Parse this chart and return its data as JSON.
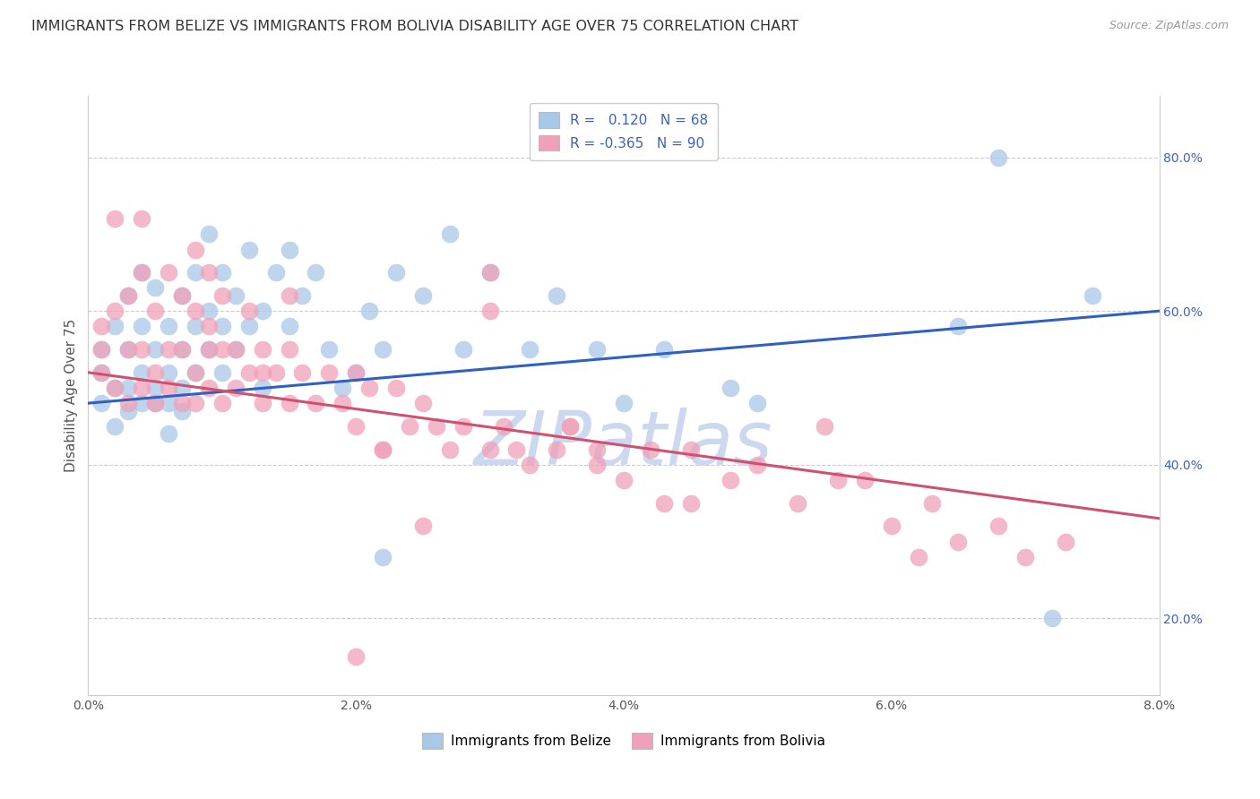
{
  "title": "IMMIGRANTS FROM BELIZE VS IMMIGRANTS FROM BOLIVIA DISABILITY AGE OVER 75 CORRELATION CHART",
  "source": "Source: ZipAtlas.com",
  "ylabel": "Disability Age Over 75",
  "xlim": [
    0.0,
    0.08
  ],
  "ylim": [
    0.1,
    0.88
  ],
  "xticks": [
    0.0,
    0.02,
    0.04,
    0.06,
    0.08
  ],
  "yticks": [
    0.2,
    0.4,
    0.6,
    0.8
  ],
  "belize_R": 0.12,
  "belize_N": 68,
  "bolivia_R": -0.365,
  "bolivia_N": 90,
  "belize_color": "#a8c8e8",
  "bolivia_color": "#f0a0b8",
  "belize_line_color": "#3060c0",
  "bolivia_line_color": "#d05070",
  "accent_color": "#4060c0",
  "watermark": "ZIPatlas",
  "watermark_color": "#ccd8f0",
  "title_fontsize": 11.5,
  "tick_fontsize": 10,
  "label_fontsize": 11,
  "belize_x": [
    0.001,
    0.001,
    0.001,
    0.002,
    0.002,
    0.002,
    0.003,
    0.003,
    0.003,
    0.003,
    0.004,
    0.004,
    0.004,
    0.004,
    0.005,
    0.005,
    0.005,
    0.005,
    0.006,
    0.006,
    0.006,
    0.006,
    0.007,
    0.007,
    0.007,
    0.007,
    0.008,
    0.008,
    0.008,
    0.009,
    0.009,
    0.009,
    0.01,
    0.01,
    0.01,
    0.011,
    0.011,
    0.012,
    0.012,
    0.013,
    0.013,
    0.014,
    0.015,
    0.015,
    0.016,
    0.017,
    0.018,
    0.019,
    0.02,
    0.021,
    0.022,
    0.023,
    0.025,
    0.027,
    0.028,
    0.03,
    0.033,
    0.035,
    0.038,
    0.04,
    0.043,
    0.048,
    0.05,
    0.022,
    0.065,
    0.068,
    0.072,
    0.075
  ],
  "belize_y": [
    0.52,
    0.48,
    0.55,
    0.5,
    0.58,
    0.45,
    0.62,
    0.55,
    0.5,
    0.47,
    0.65,
    0.58,
    0.52,
    0.48,
    0.63,
    0.55,
    0.5,
    0.48,
    0.58,
    0.52,
    0.48,
    0.44,
    0.62,
    0.55,
    0.5,
    0.47,
    0.65,
    0.58,
    0.52,
    0.7,
    0.6,
    0.55,
    0.65,
    0.58,
    0.52,
    0.62,
    0.55,
    0.68,
    0.58,
    0.6,
    0.5,
    0.65,
    0.68,
    0.58,
    0.62,
    0.65,
    0.55,
    0.5,
    0.52,
    0.6,
    0.55,
    0.65,
    0.62,
    0.7,
    0.55,
    0.65,
    0.55,
    0.62,
    0.55,
    0.48,
    0.55,
    0.5,
    0.48,
    0.28,
    0.58,
    0.8,
    0.2,
    0.62
  ],
  "bolivia_x": [
    0.001,
    0.001,
    0.001,
    0.002,
    0.002,
    0.003,
    0.003,
    0.003,
    0.004,
    0.004,
    0.004,
    0.005,
    0.005,
    0.005,
    0.006,
    0.006,
    0.006,
    0.007,
    0.007,
    0.007,
    0.008,
    0.008,
    0.008,
    0.009,
    0.009,
    0.009,
    0.01,
    0.01,
    0.01,
    0.011,
    0.011,
    0.012,
    0.012,
    0.013,
    0.013,
    0.014,
    0.015,
    0.015,
    0.016,
    0.017,
    0.018,
    0.019,
    0.02,
    0.02,
    0.021,
    0.022,
    0.023,
    0.024,
    0.025,
    0.026,
    0.027,
    0.028,
    0.03,
    0.031,
    0.032,
    0.033,
    0.035,
    0.036,
    0.038,
    0.04,
    0.042,
    0.045,
    0.048,
    0.05,
    0.053,
    0.056,
    0.06,
    0.063,
    0.065,
    0.068,
    0.07,
    0.073,
    0.002,
    0.004,
    0.008,
    0.015,
    0.02,
    0.025,
    0.03,
    0.038,
    0.045,
    0.055,
    0.062,
    0.058,
    0.043,
    0.036,
    0.03,
    0.022,
    0.013,
    0.009
  ],
  "bolivia_y": [
    0.58,
    0.52,
    0.55,
    0.6,
    0.5,
    0.62,
    0.55,
    0.48,
    0.65,
    0.55,
    0.5,
    0.6,
    0.52,
    0.48,
    0.65,
    0.55,
    0.5,
    0.62,
    0.55,
    0.48,
    0.6,
    0.52,
    0.48,
    0.65,
    0.58,
    0.5,
    0.62,
    0.55,
    0.48,
    0.55,
    0.5,
    0.6,
    0.52,
    0.55,
    0.48,
    0.52,
    0.55,
    0.48,
    0.52,
    0.48,
    0.52,
    0.48,
    0.52,
    0.45,
    0.5,
    0.42,
    0.5,
    0.45,
    0.48,
    0.45,
    0.42,
    0.45,
    0.42,
    0.45,
    0.42,
    0.4,
    0.42,
    0.45,
    0.4,
    0.38,
    0.42,
    0.42,
    0.38,
    0.4,
    0.35,
    0.38,
    0.32,
    0.35,
    0.3,
    0.32,
    0.28,
    0.3,
    0.72,
    0.72,
    0.68,
    0.62,
    0.15,
    0.32,
    0.6,
    0.42,
    0.35,
    0.45,
    0.28,
    0.38,
    0.35,
    0.45,
    0.65,
    0.42,
    0.52,
    0.55
  ]
}
